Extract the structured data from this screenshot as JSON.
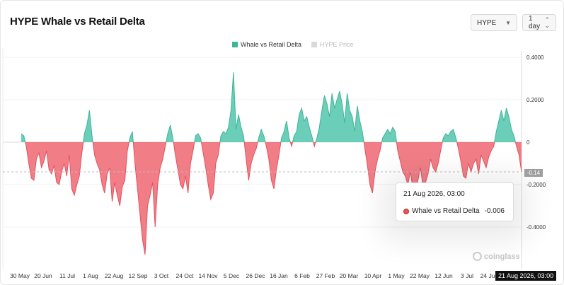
{
  "title": "HYPE Whale vs Retail Delta",
  "controls": {
    "coin": "HYPE",
    "interval": "1 day"
  },
  "colors": {
    "positive": "#5bc9b0",
    "negative": "#f0707a",
    "positive_stroke": "#3fb597",
    "negative_stroke": "#e5505c"
  },
  "legend": [
    {
      "label": "Whale vs Retail Delta",
      "color": "#3fb597",
      "active": true
    },
    {
      "label": "HYPE Price",
      "color": "#cfcfcf",
      "active": false
    }
  ],
  "tooltip": {
    "time": "21 Aug 2026, 03:00",
    "series": "Whale vs Retail Delta",
    "value": "-0.006"
  },
  "crosshair": {
    "x_label": "21 Aug 2026, 03:00",
    "y_label": "-0.14"
  },
  "watermark": "coinglass",
  "chart_data": {
    "type": "area",
    "title": "HYPE Whale vs Retail Delta",
    "xlabel": "",
    "ylabel": "",
    "ylim": [
      -0.5,
      0.4
    ],
    "y_ticks": [
      "0.4000",
      "0.2000",
      "0",
      "-0.2000",
      "-0.4000"
    ],
    "x_ticks": [
      "30 May",
      "20 Jun",
      "11 Jul",
      "1 Aug",
      "22 Aug",
      "12 Sep",
      "3 Oct",
      "24 Oct",
      "14 Nov",
      "5 Dec",
      "26 Dec",
      "16 Jan",
      "6 Feb",
      "27 Feb",
      "20 Mar",
      "10 Apr",
      "1 May",
      "22 May",
      "12 Jun",
      "3 Jul",
      "24 Jul"
    ],
    "grid": true,
    "legend_position": "top-center",
    "series": [
      {
        "name": "Whale vs Retail Delta",
        "values": [
          0.04,
          0.03,
          -0.02,
          -0.1,
          -0.17,
          -0.18,
          -0.08,
          -0.05,
          -0.12,
          -0.09,
          -0.04,
          -0.13,
          -0.15,
          -0.11,
          -0.19,
          -0.2,
          -0.14,
          -0.1,
          -0.16,
          -0.06,
          -0.22,
          -0.25,
          -0.2,
          -0.16,
          -0.05,
          0.04,
          0.08,
          0.15,
          0.03,
          -0.06,
          -0.1,
          -0.13,
          -0.2,
          -0.24,
          -0.15,
          -0.12,
          -0.28,
          -0.19,
          -0.25,
          -0.3,
          -0.21,
          -0.18,
          -0.04,
          0.02,
          0.05,
          -0.1,
          -0.22,
          -0.34,
          -0.46,
          -0.53,
          -0.3,
          -0.25,
          -0.19,
          -0.4,
          -0.2,
          -0.12,
          -0.08,
          -0.02,
          0.04,
          0.08,
          0.02,
          -0.06,
          -0.13,
          -0.2,
          -0.22,
          -0.16,
          -0.24,
          -0.1,
          -0.04,
          0.03,
          0.04,
          0.02,
          -0.05,
          -0.12,
          -0.2,
          -0.27,
          -0.24,
          -0.1,
          -0.06,
          0.03,
          0.05,
          0.04,
          0.07,
          0.15,
          0.33,
          0.06,
          0.13,
          0.07,
          0.03,
          -0.08,
          -0.18,
          -0.1,
          -0.06,
          -0.03,
          0.02,
          0.06,
          0.03,
          -0.02,
          -0.08,
          -0.18,
          -0.22,
          -0.13,
          -0.06,
          0.02,
          0.05,
          0.1,
          0.02,
          -0.02,
          0.03,
          0.05,
          0.13,
          0.16,
          0.1,
          0.12,
          0.07,
          0.03,
          -0.02,
          0.02,
          0.07,
          0.15,
          0.22,
          0.18,
          0.12,
          0.23,
          0.16,
          0.2,
          0.24,
          0.18,
          0.09,
          0.23,
          0.15,
          0.12,
          0.05,
          0.17,
          0.1,
          0.05,
          -0.03,
          -0.11,
          -0.2,
          -0.24,
          -0.14,
          -0.08,
          -0.04,
          0.02,
          0.04,
          0.06,
          0.04,
          0.07,
          0.05,
          -0.04,
          -0.09,
          -0.14,
          -0.16,
          -0.2,
          -0.14,
          -0.22,
          -0.23,
          -0.18,
          -0.12,
          -0.21,
          -0.19,
          -0.15,
          -0.08,
          -0.12,
          -0.14,
          -0.1,
          -0.04,
          0.02,
          0.04,
          0.03,
          0.05,
          0.06,
          0.02,
          -0.03,
          -0.09,
          -0.16,
          -0.17,
          -0.1,
          -0.14,
          -0.1,
          -0.08,
          -0.15,
          -0.06,
          -0.09,
          -0.12,
          -0.07,
          -0.04,
          -0.02,
          0.05,
          0.1,
          0.15,
          0.1,
          0.16,
          0.12,
          0.06,
          0.03,
          -0.02,
          -0.06,
          -0.14
        ]
      }
    ]
  }
}
